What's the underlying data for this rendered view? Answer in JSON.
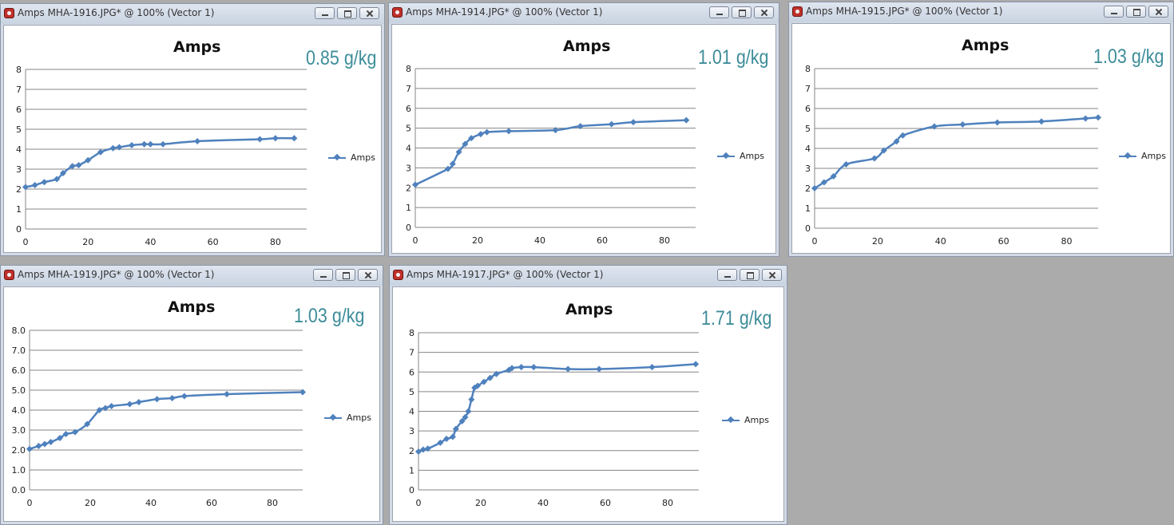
{
  "windows": [
    {
      "title": "Amps MHA-1916.JPG* @ 100% (Vector 1)",
      "note": "0.85 g/kg",
      "chart_data": {
        "type": "line",
        "title": "Amps",
        "xlabel": "",
        "ylabel": "",
        "xlim": [
          0,
          90
        ],
        "ylim": [
          0,
          8
        ],
        "xticks": [
          0,
          20,
          40,
          60,
          80
        ],
        "yticks": [
          "0",
          "1",
          "2",
          "3",
          "4",
          "5",
          "6",
          "7",
          "8"
        ],
        "grid": "horizontal",
        "legend": "right",
        "color": "#4f81bd",
        "series": [
          {
            "name": "Amps",
            "x": [
              0,
              3,
              6,
              10,
              12,
              15,
              17,
              20,
              24,
              28,
              30,
              34,
              38,
              40,
              44,
              55,
              75,
              80,
              86
            ],
            "y": [
              2.1,
              2.2,
              2.35,
              2.5,
              2.8,
              3.15,
              3.2,
              3.45,
              3.85,
              4.05,
              4.1,
              4.2,
              4.25,
              4.25,
              4.25,
              4.4,
              4.5,
              4.55,
              4.55
            ]
          }
        ]
      }
    },
    {
      "title": "Amps MHA-1914.JPG* @ 100% (Vector 1)",
      "note": "1.01 g/kg",
      "chart_data": {
        "type": "line",
        "title": "Amps",
        "xlabel": "",
        "ylabel": "",
        "xlim": [
          0,
          90
        ],
        "ylim": [
          0,
          8
        ],
        "xticks": [
          0,
          20,
          40,
          60,
          80
        ],
        "yticks": [
          "0",
          "1",
          "2",
          "3",
          "4",
          "5",
          "6",
          "7",
          "8"
        ],
        "grid": "horizontal",
        "legend": "right",
        "color": "#4f81bd",
        "series": [
          {
            "name": "Amps",
            "x": [
              0,
              10.5,
              12,
              14,
              16,
              18,
              21,
              23,
              30,
              45,
              53,
              63,
              70,
              87
            ],
            "y": [
              2.15,
              2.95,
              3.2,
              3.8,
              4.2,
              4.5,
              4.7,
              4.8,
              4.85,
              4.9,
              5.1,
              5.2,
              5.3,
              5.4
            ]
          }
        ]
      }
    },
    {
      "title": "Amps MHA-1915.JPG* @ 100% (Vector 1)",
      "note": "1.03 g/kg",
      "chart_data": {
        "type": "line",
        "title": "Amps",
        "xlabel": "",
        "ylabel": "",
        "xlim": [
          0,
          90
        ],
        "ylim": [
          0,
          8
        ],
        "xticks": [
          0,
          20,
          40,
          60,
          80
        ],
        "yticks": [
          "0",
          "1",
          "2",
          "3",
          "4",
          "5",
          "6",
          "7",
          "8"
        ],
        "grid": "horizontal",
        "legend": "right",
        "color": "#4f81bd",
        "series": [
          {
            "name": "Amps",
            "x": [
              0,
              3,
              6,
              10,
              19,
              22,
              26,
              28,
              38,
              47,
              58,
              72,
              86,
              90
            ],
            "y": [
              2.0,
              2.3,
              2.6,
              3.2,
              3.5,
              3.9,
              4.35,
              4.65,
              5.1,
              5.2,
              5.3,
              5.35,
              5.5,
              5.55
            ]
          }
        ]
      }
    },
    {
      "title": "Amps MHA-1919.JPG* @ 100% (Vector 1)",
      "note": "1.03 g/kg",
      "chart_data": {
        "type": "line",
        "title": "Amps",
        "xlabel": "",
        "ylabel": "",
        "xlim": [
          0,
          90
        ],
        "ylim": [
          0,
          8
        ],
        "xticks": [
          0,
          20,
          40,
          60,
          80
        ],
        "yticks": [
          "0.0",
          "1.0",
          "2.0",
          "3.0",
          "4.0",
          "5.0",
          "6.0",
          "7.0",
          "8.0"
        ],
        "grid": "horizontal",
        "legend": "right",
        "color": "#4f81bd",
        "series": [
          {
            "name": "Amps",
            "x": [
              0,
              3,
              5,
              7,
              10,
              12,
              15,
              19,
              23,
              25,
              27,
              33,
              36,
              42,
              47,
              51,
              65,
              90
            ],
            "y": [
              2.05,
              2.2,
              2.3,
              2.4,
              2.6,
              2.8,
              2.9,
              3.3,
              4.0,
              4.1,
              4.2,
              4.3,
              4.4,
              4.55,
              4.6,
              4.7,
              4.8,
              4.9
            ]
          }
        ]
      }
    },
    {
      "title": "Amps MHA-1917.JPG* @ 100% (Vector 1)",
      "note": "1.71 g/kg",
      "chart_data": {
        "type": "line",
        "title": "Amps",
        "xlabel": "",
        "ylabel": "",
        "xlim": [
          0,
          90
        ],
        "ylim": [
          0,
          8
        ],
        "xticks": [
          0,
          20,
          40,
          60,
          80
        ],
        "yticks": [
          "0",
          "1",
          "2",
          "3",
          "4",
          "5",
          "6",
          "7",
          "8"
        ],
        "grid": "horizontal",
        "legend": "right",
        "color": "#4f81bd",
        "series": [
          {
            "name": "Amps",
            "x": [
              0,
              1.5,
              3,
              7,
              9,
              11,
              12,
              14,
              15,
              16,
              17,
              18,
              19,
              21,
              23,
              25,
              29,
              30,
              33,
              37,
              48,
              58,
              75,
              89
            ],
            "y": [
              1.95,
              2.05,
              2.1,
              2.4,
              2.6,
              2.7,
              3.1,
              3.5,
              3.7,
              4.0,
              4.6,
              5.2,
              5.3,
              5.5,
              5.7,
              5.9,
              6.1,
              6.2,
              6.25,
              6.25,
              6.15,
              6.15,
              6.25,
              6.4
            ]
          }
        ]
      }
    }
  ]
}
